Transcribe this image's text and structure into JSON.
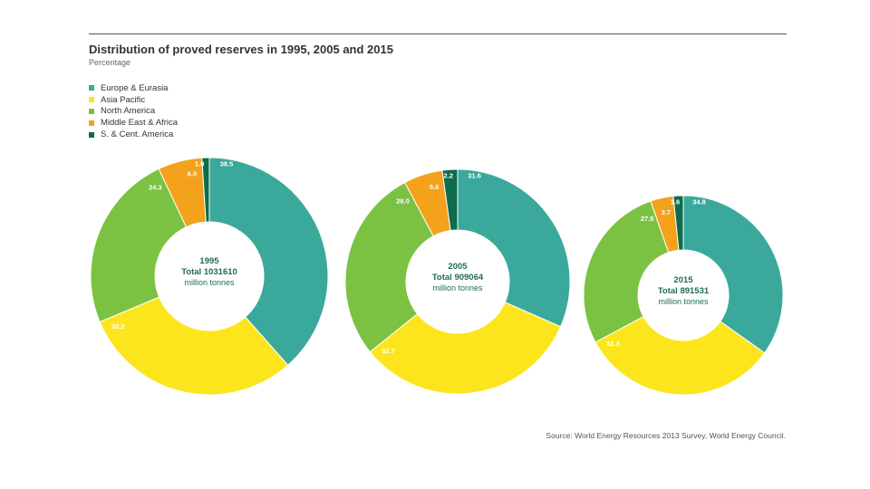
{
  "header": {
    "title": "Distribution of proved reserves in 1995, 2005 and 2015",
    "subtitle": "Percentage"
  },
  "legend": [
    {
      "label": "Europe & Eurasia",
      "color": "#3aa99b"
    },
    {
      "label": "Asia Pacific",
      "color": "#fce51c"
    },
    {
      "label": "North America",
      "color": "#7cc242"
    },
    {
      "label": "Middle East & Africa",
      "color": "#f4a21b"
    },
    {
      "label": "S. & Cent. America",
      "color": "#0d6b4e"
    }
  ],
  "source": "Source: World Energy Resources 2013 Survey, World Energy Council.",
  "chart_data": [
    {
      "type": "pie",
      "year": "1995",
      "total_label": "Total 1031610",
      "unit": "million tonnes",
      "slices": [
        {
          "series": "Europe & Eurasia",
          "value": 38.5,
          "label": "38.5"
        },
        {
          "series": "Asia Pacific",
          "value": 30.2,
          "label": "30.2"
        },
        {
          "series": "North America",
          "value": 24.3,
          "label": "24.3"
        },
        {
          "series": "Middle East & Africa",
          "value": 6.0,
          "label": "6.0"
        },
        {
          "series": "S. & Cent. America",
          "value": 1.0,
          "label": "1.0"
        }
      ]
    },
    {
      "type": "pie",
      "year": "2005",
      "total_label": "Total 909064",
      "unit": "million tonnes",
      "slices": [
        {
          "series": "Europe & Eurasia",
          "value": 31.6,
          "label": "31.6"
        },
        {
          "series": "Asia Pacific",
          "value": 32.7,
          "label": "32.7"
        },
        {
          "series": "North America",
          "value": 28.0,
          "label": "28.0"
        },
        {
          "series": "Middle East & Africa",
          "value": 5.6,
          "label": "5.6"
        },
        {
          "series": "S. & Cent. America",
          "value": 2.2,
          "label": "2.2"
        }
      ]
    },
    {
      "type": "pie",
      "year": "2015",
      "total_label": "Total 891531",
      "unit": "million tonnes",
      "slices": [
        {
          "series": "Europe & Eurasia",
          "value": 34.8,
          "label": "34.8"
        },
        {
          "series": "Asia Pacific",
          "value": 32.3,
          "label": "32.3"
        },
        {
          "series": "North America",
          "value": 27.5,
          "label": "27.5"
        },
        {
          "series": "Middle East & Africa",
          "value": 3.7,
          "label": "3.7"
        },
        {
          "series": "S. & Cent. America",
          "value": 1.6,
          "label": "1.6"
        }
      ]
    }
  ]
}
